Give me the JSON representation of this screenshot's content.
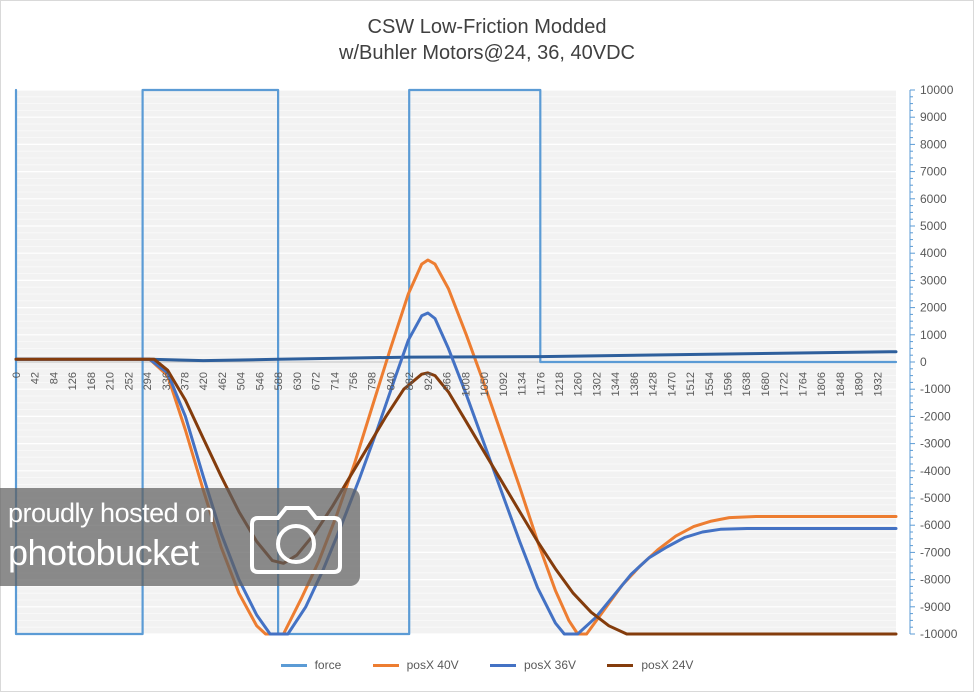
{
  "chart_data": {
    "type": "line",
    "title_line1": "CSW Low-Friction Modded",
    "title_line2": "w/Buhler Motors@24, 36, 40VDC",
    "xlabel": "",
    "ylabel": "",
    "x_tick_labels": [
      "0",
      "42",
      "84",
      "126",
      "168",
      "210",
      "252",
      "294",
      "336",
      "378",
      "420",
      "462",
      "504",
      "546",
      "588",
      "630",
      "672",
      "714",
      "756",
      "798",
      "840",
      "882",
      "924",
      "966",
      "1008",
      "1050",
      "1092",
      "1134",
      "1176",
      "1218",
      "1260",
      "1302",
      "1344",
      "1386",
      "1428",
      "1470",
      "1512",
      "1554",
      "1596",
      "1638",
      "1680",
      "1722",
      "1764",
      "1806",
      "1848",
      "1890",
      "1932"
    ],
    "x_range": [
      0,
      1974
    ],
    "y_axis_side": "right",
    "ylim": [
      -10000,
      10000
    ],
    "y_ticks": [
      10000,
      9000,
      8000,
      7000,
      6000,
      5000,
      4000,
      3000,
      2000,
      1000,
      0,
      -1000,
      -2000,
      -3000,
      -4000,
      -5000,
      -6000,
      -7000,
      -8000,
      -9000,
      -10000
    ],
    "grid": true,
    "legend_position": "bottom",
    "series": [
      {
        "name": "force",
        "color": "#5b9bd5",
        "points": [
          [
            0,
            10000
          ],
          [
            0,
            -10000
          ],
          [
            284,
            -10000
          ],
          [
            284,
            10000
          ],
          [
            588,
            10000
          ],
          [
            588,
            -10000
          ],
          [
            882,
            -10000
          ],
          [
            882,
            10000
          ],
          [
            1176,
            10000
          ],
          [
            1176,
            0
          ],
          [
            1974,
            0
          ]
        ]
      },
      {
        "name": "posX 40V",
        "color": "#ed7d31",
        "points": [
          [
            0,
            100
          ],
          [
            300,
            100
          ],
          [
            340,
            -500
          ],
          [
            380,
            -2500
          ],
          [
            420,
            -4700
          ],
          [
            460,
            -6800
          ],
          [
            500,
            -8500
          ],
          [
            540,
            -9700
          ],
          [
            560,
            -10000
          ],
          [
            600,
            -10000
          ],
          [
            640,
            -8700
          ],
          [
            680,
            -7300
          ],
          [
            720,
            -5600
          ],
          [
            760,
            -3700
          ],
          [
            800,
            -1600
          ],
          [
            840,
            500
          ],
          [
            880,
            2500
          ],
          [
            910,
            3600
          ],
          [
            924,
            3750
          ],
          [
            940,
            3600
          ],
          [
            970,
            2700
          ],
          [
            1010,
            1000
          ],
          [
            1050,
            -800
          ],
          [
            1090,
            -2700
          ],
          [
            1130,
            -4600
          ],
          [
            1170,
            -6600
          ],
          [
            1210,
            -8400
          ],
          [
            1240,
            -9500
          ],
          [
            1260,
            -10000
          ],
          [
            1280,
            -10000
          ],
          [
            1320,
            -9100
          ],
          [
            1360,
            -8200
          ],
          [
            1400,
            -7500
          ],
          [
            1440,
            -6900
          ],
          [
            1480,
            -6400
          ],
          [
            1520,
            -6050
          ],
          [
            1560,
            -5850
          ],
          [
            1600,
            -5720
          ],
          [
            1660,
            -5680
          ],
          [
            1974,
            -5680
          ]
        ]
      },
      {
        "name": "posX 36V",
        "color": "#2e5f9c",
        "points": [
          [
            0,
            100
          ],
          [
            300,
            100
          ],
          [
            420,
            50
          ],
          [
            588,
            100
          ],
          [
            882,
            180
          ],
          [
            1176,
            200
          ],
          [
            1470,
            270
          ],
          [
            1974,
            380
          ]
        ]
      },
      {
        "name": "posX 36V",
        "color": "#4472c4",
        "points": [
          [
            0,
            100
          ],
          [
            300,
            100
          ],
          [
            340,
            -400
          ],
          [
            380,
            -2000
          ],
          [
            420,
            -4200
          ],
          [
            460,
            -6300
          ],
          [
            500,
            -8000
          ],
          [
            540,
            -9300
          ],
          [
            570,
            -10000
          ],
          [
            610,
            -10000
          ],
          [
            650,
            -9000
          ],
          [
            690,
            -7600
          ],
          [
            730,
            -6000
          ],
          [
            770,
            -4300
          ],
          [
            810,
            -2500
          ],
          [
            850,
            -600
          ],
          [
            880,
            800
          ],
          [
            910,
            1700
          ],
          [
            924,
            1800
          ],
          [
            940,
            1600
          ],
          [
            970,
            500
          ],
          [
            1010,
            -1200
          ],
          [
            1050,
            -3000
          ],
          [
            1090,
            -4800
          ],
          [
            1130,
            -6600
          ],
          [
            1170,
            -8300
          ],
          [
            1210,
            -9600
          ],
          [
            1230,
            -10000
          ],
          [
            1260,
            -10000
          ],
          [
            1300,
            -9400
          ],
          [
            1340,
            -8600
          ],
          [
            1380,
            -7800
          ],
          [
            1420,
            -7200
          ],
          [
            1460,
            -6800
          ],
          [
            1500,
            -6450
          ],
          [
            1540,
            -6250
          ],
          [
            1580,
            -6150
          ],
          [
            1640,
            -6120
          ],
          [
            1974,
            -6120
          ]
        ]
      },
      {
        "name": "posX 24V",
        "color": "#843c0c",
        "points": [
          [
            0,
            100
          ],
          [
            310,
            100
          ],
          [
            340,
            -300
          ],
          [
            380,
            -1400
          ],
          [
            420,
            -2800
          ],
          [
            460,
            -4200
          ],
          [
            500,
            -5500
          ],
          [
            540,
            -6600
          ],
          [
            575,
            -7300
          ],
          [
            600,
            -7400
          ],
          [
            630,
            -7100
          ],
          [
            670,
            -6300
          ],
          [
            710,
            -5300
          ],
          [
            750,
            -4200
          ],
          [
            790,
            -3100
          ],
          [
            830,
            -2000
          ],
          [
            870,
            -1000
          ],
          [
            910,
            -450
          ],
          [
            924,
            -400
          ],
          [
            940,
            -500
          ],
          [
            970,
            -1100
          ],
          [
            1010,
            -2200
          ],
          [
            1050,
            -3300
          ],
          [
            1090,
            -4400
          ],
          [
            1130,
            -5500
          ],
          [
            1170,
            -6600
          ],
          [
            1210,
            -7600
          ],
          [
            1250,
            -8500
          ],
          [
            1290,
            -9200
          ],
          [
            1330,
            -9700
          ],
          [
            1370,
            -10000
          ],
          [
            1974,
            -10000
          ]
        ]
      }
    ]
  },
  "legend": {
    "items": [
      {
        "label": "force",
        "color": "#5b9bd5"
      },
      {
        "label": "posX 40V",
        "color": "#ed7d31"
      },
      {
        "label": "posX 36V",
        "color": "#4472c4"
      },
      {
        "label": "posX 24V",
        "color": "#843c0c"
      }
    ]
  },
  "watermark": {
    "line1": "proudly hosted on",
    "line2": "photobucket"
  }
}
